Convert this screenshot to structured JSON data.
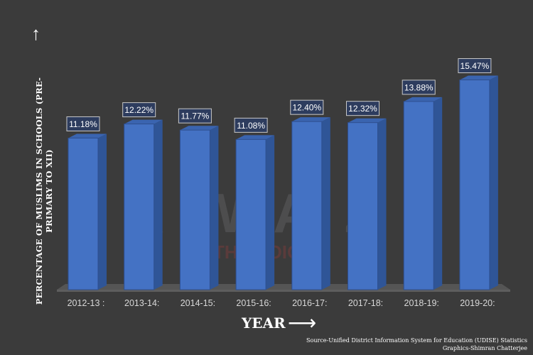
{
  "chart_data": {
    "type": "bar",
    "title": "",
    "xlabel": "YEAR",
    "ylabel": "PERCENTAGE OF MUSLIMS IN SCHOOLS (PRE-PRIMARY TO XII)",
    "categories": [
      "2012-13 :",
      "2013-14:",
      "2014-15:",
      "2015-16:",
      "2016-17:",
      "2017-18:",
      "2018-19:",
      "2019-20:"
    ],
    "values": [
      11.18,
      12.22,
      11.77,
      11.08,
      12.4,
      12.32,
      13.88,
      15.47
    ],
    "data_labels": [
      "11.18%",
      "12.22%",
      "11.77%",
      "11.08%",
      "12.40%",
      "12.32%",
      "13.88%",
      "15.47%"
    ],
    "ylim": [
      0,
      20
    ],
    "grid": false,
    "bar_color": "#4472c4"
  },
  "source": "Source-Unified District Information System for Education  (UDISE) Statistics",
  "credit": "Graphics-Shimran Chatterjee",
  "watermark": {
    "brand": "AWAZ",
    "tagline": "THE VOICE"
  }
}
